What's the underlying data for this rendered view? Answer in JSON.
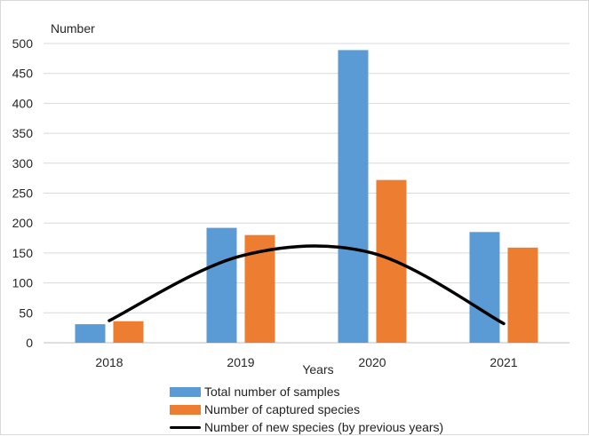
{
  "chart_data": {
    "type": "bar",
    "title": "",
    "ylabel": "Number",
    "xlabel": "Years",
    "ylim": [
      0,
      500
    ],
    "yticks": [
      0,
      50,
      100,
      150,
      200,
      250,
      300,
      350,
      400,
      450,
      500
    ],
    "grid": true,
    "legend_position": "bottom",
    "categories": [
      "2018",
      "2019",
      "2020",
      "2021"
    ],
    "series": [
      {
        "name": "Total number of samples",
        "type": "bar",
        "color": "#5b9bd5",
        "values": [
          31,
          192,
          489,
          185
        ]
      },
      {
        "name": "Number of captured species",
        "type": "bar",
        "color": "#ed7d31",
        "values": [
          36,
          180,
          272,
          159
        ]
      },
      {
        "name": "Number of new species (by previous years)",
        "type": "line",
        "color": "#000000",
        "values": [
          37,
          145,
          150,
          32
        ]
      }
    ]
  }
}
